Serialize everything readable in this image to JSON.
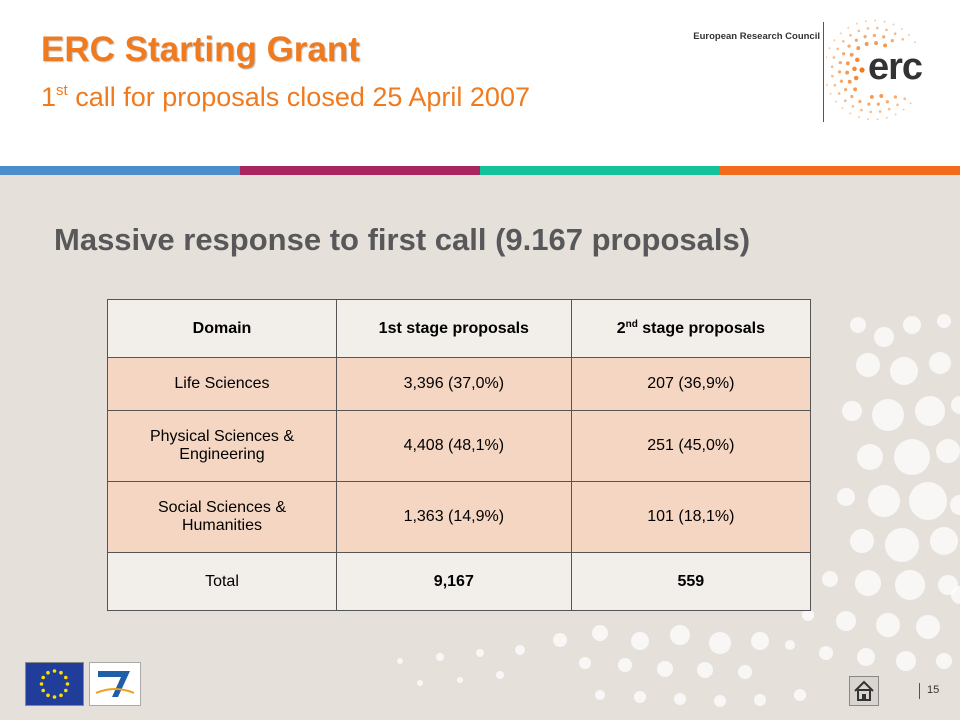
{
  "header": {
    "title": "ERC Starting Grant",
    "subtitle_prefix": "1",
    "subtitle_sup": "st",
    "subtitle_rest": " call for proposals closed 25 April 2007",
    "org_name": "European Research Council",
    "logo_text": "erc"
  },
  "band_colors": [
    "#4a8fcb",
    "#a8265d",
    "#15c199",
    "#f26a1b"
  ],
  "headline": "Massive response to first call (9.167 proposals)",
  "table": {
    "headers": {
      "domain": "Domain",
      "stage1": "1st stage proposals",
      "stage2_prefix": "2",
      "stage2_sup": "nd",
      "stage2_rest": " stage proposals"
    },
    "rows": [
      {
        "domain": "Life Sciences",
        "stage1": "3,396 (37,0%)",
        "stage2": "207 (36,9%)"
      },
      {
        "domain": "Physical Sciences & Engineering",
        "stage1": "4,408 (48,1%)",
        "stage2": "251 (45,0%)"
      },
      {
        "domain": "Social Sciences & Humanities",
        "stage1": "1,363 (14,9%)",
        "stage2": "101 (18,1%)"
      }
    ],
    "total": {
      "label": "Total",
      "stage1": "9,167",
      "stage2": "559"
    }
  },
  "footer": {
    "page_number": "15",
    "eu_flag_icon": "eu-flag-icon",
    "fp7_icon": "fp7-ideas-logo",
    "home_icon": "home-icon"
  }
}
